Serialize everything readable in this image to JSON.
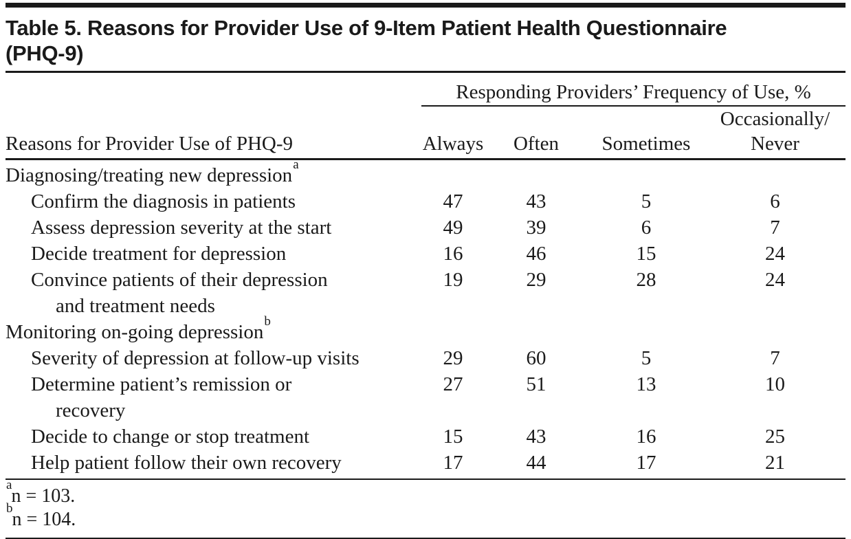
{
  "table": {
    "title_line1": "Table 5. Reasons for Provider Use of 9-Item Patient Health Questionnaire",
    "title_line2": "(PHQ-9)",
    "spanner": "Responding Providers’ Frequency of Use, %",
    "stub_header": "Reasons for Provider Use of PHQ-9",
    "columns": [
      {
        "lines": [
          "Always"
        ]
      },
      {
        "lines": [
          "Often"
        ]
      },
      {
        "lines": [
          "Sometimes"
        ]
      },
      {
        "lines": [
          "Occasionally/",
          "Never"
        ]
      }
    ],
    "rows": [
      {
        "label": "Diagnosing/treating new depression",
        "sup": "a",
        "indent": 0,
        "values": [
          "",
          "",
          "",
          ""
        ]
      },
      {
        "label": "Confirm the diagnosis in patients",
        "indent": 1,
        "values": [
          "47",
          "43",
          "5",
          "6"
        ]
      },
      {
        "label": "Assess depression severity at the start",
        "indent": 1,
        "values": [
          "49",
          "39",
          "6",
          "7"
        ]
      },
      {
        "label": "Decide treatment for depression",
        "indent": 1,
        "values": [
          "16",
          "46",
          "15",
          "24"
        ]
      },
      {
        "label": "Convince patients of their depression",
        "label2": "and treatment needs",
        "indent": 1,
        "values": [
          "19",
          "29",
          "28",
          "24"
        ]
      },
      {
        "label": "Monitoring on-going depression",
        "sup": "b",
        "indent": 0,
        "values": [
          "",
          "",
          "",
          ""
        ]
      },
      {
        "label": "Severity of depression at follow-up visits",
        "indent": 1,
        "values": [
          "29",
          "60",
          "5",
          "7"
        ]
      },
      {
        "label": "Determine patient’s remission or",
        "label2": "recovery",
        "indent": 1,
        "values": [
          "27",
          "51",
          "13",
          "10"
        ]
      },
      {
        "label": "Decide to change or stop treatment",
        "indent": 1,
        "values": [
          "15",
          "43",
          "16",
          "25"
        ]
      },
      {
        "label": "Help patient follow their own recovery",
        "indent": 1,
        "values": [
          "17",
          "44",
          "17",
          "21"
        ]
      }
    ],
    "footnotes": [
      {
        "sup": "a",
        "text": "n = 103."
      },
      {
        "sup": "b",
        "text": "n = 104."
      }
    ],
    "colors": {
      "ink": "#1a1a1a",
      "background": "#ffffff"
    }
  }
}
